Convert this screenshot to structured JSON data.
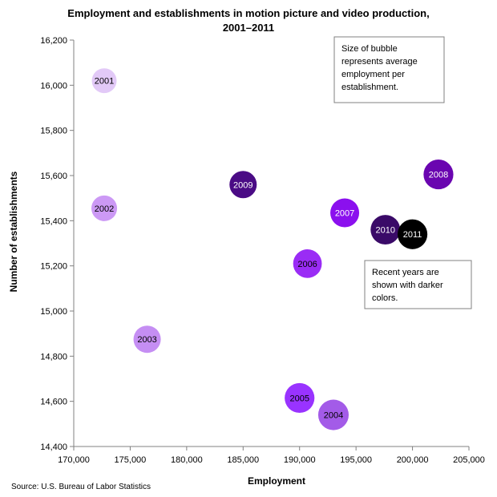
{
  "chart_data": {
    "type": "bubble",
    "title_lines": [
      "Employment and establishments in motion picture and video production,",
      "2001–2011"
    ],
    "xlabel": "Employment",
    "ylabel": "Number of establishments",
    "xlim": [
      170000,
      205000
    ],
    "ylim": [
      14400,
      16200
    ],
    "x_ticks": [
      {
        "value": 170000,
        "label": "170,000"
      },
      {
        "value": 175000,
        "label": "175,000"
      },
      {
        "value": 180000,
        "label": "180,000"
      },
      {
        "value": 185000,
        "label": "185,000"
      },
      {
        "value": 190000,
        "label": "190,000"
      },
      {
        "value": 195000,
        "label": "195,000"
      },
      {
        "value": 200000,
        "label": "200,000"
      },
      {
        "value": 205000,
        "label": "205,000"
      }
    ],
    "y_ticks": [
      {
        "value": 14400,
        "label": "14,400"
      },
      {
        "value": 14600,
        "label": "14,600"
      },
      {
        "value": 14800,
        "label": "14,800"
      },
      {
        "value": 15000,
        "label": "15,000"
      },
      {
        "value": 15200,
        "label": "15,200"
      },
      {
        "value": 15400,
        "label": "15,400"
      },
      {
        "value": 15600,
        "label": "15,600"
      },
      {
        "value": 15800,
        "label": "15,800"
      },
      {
        "value": 16000,
        "label": "16,000"
      },
      {
        "value": 16200,
        "label": "16,200"
      }
    ],
    "grid": false,
    "points": [
      {
        "label": "2001",
        "x": 172700,
        "y": 16020,
        "size": 10.8,
        "color": "#e2c9f7",
        "text_color": "#000000"
      },
      {
        "label": "2002",
        "x": 172700,
        "y": 15455,
        "size": 11.2,
        "color": "#cc99f5",
        "text_color": "#000000"
      },
      {
        "label": "2003",
        "x": 176500,
        "y": 14875,
        "size": 11.9,
        "color": "#c58ef3",
        "text_color": "#000000"
      },
      {
        "label": "2004",
        "x": 193000,
        "y": 14540,
        "size": 13.3,
        "color": "#a35be8",
        "text_color": "#000000"
      },
      {
        "label": "2005",
        "x": 190000,
        "y": 14615,
        "size": 13.0,
        "color": "#9933ff",
        "text_color": "#000000"
      },
      {
        "label": "2006",
        "x": 190700,
        "y": 15210,
        "size": 12.5,
        "color": "#9a2cf5",
        "text_color": "#000000"
      },
      {
        "label": "2007",
        "x": 194000,
        "y": 15435,
        "size": 12.6,
        "color": "#8b10ee",
        "text_color": "#ffffff"
      },
      {
        "label": "2008",
        "x": 202300,
        "y": 15605,
        "size": 13.0,
        "color": "#6a05b0",
        "text_color": "#ffffff"
      },
      {
        "label": "2009",
        "x": 185000,
        "y": 15560,
        "size": 11.9,
        "color": "#4a0b85",
        "text_color": "#ffffff"
      },
      {
        "label": "2010",
        "x": 197600,
        "y": 15360,
        "size": 12.9,
        "color": "#3a0a68",
        "text_color": "#ffffff"
      },
      {
        "label": "2011",
        "x": 200000,
        "y": 15340,
        "size": 13.0,
        "color": "#000000",
        "text_color": "#ffffff"
      }
    ],
    "annotations": [
      {
        "lines": [
          "Size of bubble",
          "represents average",
          "employment per",
          "establishment."
        ]
      },
      {
        "lines": [
          "Recent years are",
          "shown with darker",
          "colors."
        ]
      }
    ],
    "source": "Source: U.S. Bureau of Labor Statistics"
  }
}
